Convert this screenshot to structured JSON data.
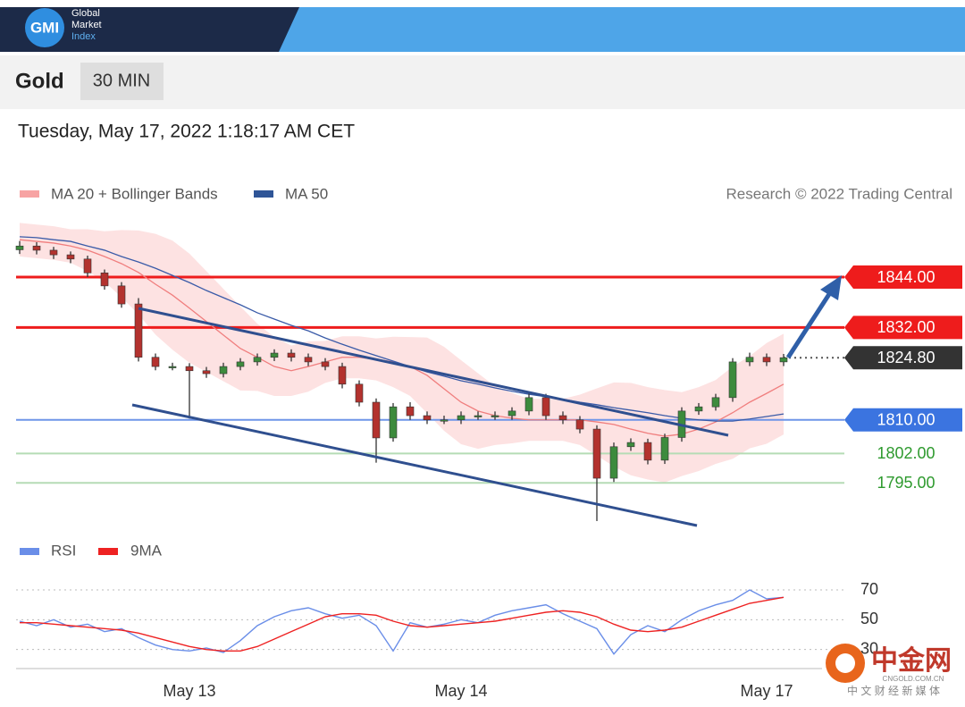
{
  "header": {
    "logo": "GMI",
    "brand": [
      "Global",
      "Market",
      "Index"
    ]
  },
  "instrument": "Gold",
  "interval": "30 MIN",
  "timestamp": "Tuesday, May 17, 2022 1:18:17 AM CET",
  "watermark": {
    "brand": "中金网",
    "site": "CNGOLD.COM.CN",
    "tagline": "中 文 财 经 新 媒 体"
  },
  "chart_data": [
    {
      "type": "candlestick",
      "credit": "Research © 2022 Trading Central",
      "categories": [
        null,
        null,
        null,
        null,
        null,
        null,
        null,
        null,
        null,
        null,
        "May 13",
        null,
        null,
        null,
        null,
        null,
        null,
        null,
        null,
        null,
        null,
        null,
        null,
        null,
        null,
        null,
        "May 14",
        null,
        null,
        null,
        null,
        null,
        null,
        null,
        null,
        null,
        null,
        null,
        null,
        null,
        null,
        null,
        null,
        null,
        "May 17",
        null
      ],
      "open": [
        1850.5,
        1851.4,
        1850.4,
        1849.3,
        1848.3,
        1845.0,
        1841.9,
        1837.6,
        1824.9,
        1822.7,
        1822.7,
        1821.7,
        1821.0,
        1822.7,
        1823.8,
        1824.9,
        1825.9,
        1824.9,
        1823.8,
        1822.7,
        1818.5,
        1814.2,
        1805.7,
        1813.1,
        1811.0,
        1810.0,
        1810.0,
        1811.0,
        1811.0,
        1811.0,
        1812.1,
        1815.3,
        1811.0,
        1810.0,
        1807.8,
        1796.1,
        1803.6,
        1804.6,
        1800.4,
        1805.8,
        1812.1,
        1813.1,
        1815.3,
        1823.8,
        1824.9,
        1823.8
      ],
      "high": [
        1852.6,
        1852.3,
        1851.2,
        1850.1,
        1849.1,
        1845.8,
        1842.8,
        1839.0,
        1825.8,
        1823.6,
        1823.5,
        1822.6,
        1823.6,
        1824.7,
        1825.8,
        1826.8,
        1826.8,
        1825.8,
        1824.7,
        1823.6,
        1819.4,
        1815.1,
        1814.0,
        1814.2,
        1812.0,
        1811.0,
        1812.0,
        1812.0,
        1812.0,
        1813.0,
        1816.6,
        1816.2,
        1812.0,
        1810.9,
        1808.7,
        1804.6,
        1805.6,
        1805.5,
        1806.7,
        1813.0,
        1814.0,
        1816.2,
        1824.7,
        1826.0,
        1825.8,
        1825.7
      ],
      "low": [
        1849.5,
        1849.4,
        1848.3,
        1847.3,
        1844.0,
        1841.0,
        1836.7,
        1823.9,
        1821.8,
        1821.8,
        1810.3,
        1820.0,
        1820.1,
        1821.8,
        1822.9,
        1824.0,
        1823.9,
        1822.8,
        1821.8,
        1817.5,
        1813.2,
        1799.8,
        1804.8,
        1810.0,
        1809.0,
        1809.0,
        1809.0,
        1810.0,
        1810.0,
        1810.0,
        1811.1,
        1810.0,
        1809.0,
        1806.8,
        1785.9,
        1795.2,
        1802.6,
        1799.4,
        1799.5,
        1804.8,
        1811.2,
        1812.2,
        1814.3,
        1822.8,
        1822.8,
        1822.8
      ],
      "close": [
        1851.4,
        1850.4,
        1849.3,
        1848.3,
        1845.0,
        1841.9,
        1837.6,
        1824.9,
        1822.7,
        1822.7,
        1821.7,
        1821.0,
        1822.7,
        1823.8,
        1824.9,
        1825.9,
        1824.9,
        1823.8,
        1822.7,
        1818.5,
        1814.2,
        1805.7,
        1813.1,
        1811.0,
        1810.0,
        1810.0,
        1811.0,
        1811.0,
        1811.0,
        1812.1,
        1815.3,
        1811.0,
        1810.0,
        1807.8,
        1796.1,
        1803.6,
        1804.6,
        1800.4,
        1805.8,
        1812.1,
        1813.1,
        1815.3,
        1823.8,
        1824.9,
        1823.8,
        1824.8
      ],
      "up_color": "#3d8b3d",
      "down_color": "#b3322e",
      "series": [
        {
          "name": "MA 20 + Bollinger Bands",
          "color": "#f07e7e",
          "band_color": "#fde2e2",
          "values": [
            1852.9,
            1852.5,
            1852.1,
            1851.4,
            1850.4,
            1848.9,
            1847.2,
            1845.1,
            1842.3,
            1839.7,
            1836.6,
            1833.4,
            1830.2,
            1827.0,
            1824.9,
            1822.7,
            1821.7,
            1822.7,
            1823.8,
            1824.9,
            1824.9,
            1824.4,
            1823.8,
            1822.7,
            1820.6,
            1817.4,
            1814.2,
            1812.1,
            1811.0,
            1810.4,
            1810.0,
            1810.0,
            1810.0,
            1810.0,
            1809.5,
            1808.9,
            1807.8,
            1806.8,
            1806.1,
            1806.6,
            1807.8,
            1809.5,
            1811.7,
            1814.2,
            1816.3,
            1818.5
          ],
          "upper": [
            1856.9,
            1856.5,
            1856.1,
            1855.4,
            1855.4,
            1854.9,
            1855.2,
            1855.1,
            1854.3,
            1852.7,
            1849.6,
            1845.4,
            1841.2,
            1837.0,
            1832.9,
            1829.7,
            1827.7,
            1828.7,
            1828.8,
            1829.9,
            1829.9,
            1829.4,
            1829.8,
            1829.7,
            1829.6,
            1827.4,
            1824.2,
            1821.1,
            1818.0,
            1816.4,
            1815.0,
            1815.0,
            1815.0,
            1816.0,
            1817.5,
            1818.9,
            1818.8,
            1817.8,
            1817.1,
            1816.6,
            1817.8,
            1819.5,
            1822.7,
            1825.2,
            1828.3,
            1830.5
          ],
          "lower": [
            1848.9,
            1848.5,
            1848.1,
            1847.4,
            1845.4,
            1842.9,
            1839.2,
            1835.1,
            1830.3,
            1826.7,
            1823.6,
            1821.4,
            1819.2,
            1817.0,
            1816.9,
            1815.7,
            1815.7,
            1816.7,
            1818.8,
            1819.9,
            1819.9,
            1819.4,
            1817.8,
            1815.7,
            1811.6,
            1807.4,
            1804.2,
            1803.1,
            1804.0,
            1804.4,
            1805.0,
            1805.0,
            1805.0,
            1804.0,
            1801.5,
            1798.9,
            1796.8,
            1795.8,
            1795.1,
            1796.6,
            1797.8,
            1799.5,
            1800.7,
            1803.2,
            1804.3,
            1806.5
          ]
        },
        {
          "name": "MA 50",
          "color": "#3a5ba8",
          "values": [
            1853.6,
            1853.4,
            1852.9,
            1852.5,
            1851.4,
            1850.4,
            1848.9,
            1847.6,
            1846.1,
            1844.4,
            1842.7,
            1840.8,
            1839.1,
            1837.4,
            1835.5,
            1834.0,
            1832.5,
            1831.2,
            1829.5,
            1828.0,
            1826.6,
            1825.3,
            1824.0,
            1822.7,
            1821.4,
            1820.4,
            1819.3,
            1818.5,
            1817.6,
            1816.8,
            1816.1,
            1815.5,
            1814.9,
            1814.2,
            1813.6,
            1812.9,
            1812.3,
            1811.7,
            1811.0,
            1810.4,
            1810.0,
            1809.7,
            1809.7,
            1810.2,
            1810.8,
            1811.4
          ]
        }
      ],
      "levels": [
        {
          "value": 1844,
          "label": "1844.00",
          "color": "#ee1c1c",
          "line_color": "#ee1c1c",
          "box": true,
          "line": "solid"
        },
        {
          "value": 1832,
          "label": "1832.00",
          "color": "#ee1c1c",
          "line_color": "#ee1c1c",
          "box": true,
          "line": "solid"
        },
        {
          "value": 1824.8,
          "label": "1824.80",
          "color": "#333333",
          "line_color": "#555555",
          "box": true,
          "line": "dotted"
        },
        {
          "value": 1810,
          "label": "1810.00",
          "color": "#3b74e0",
          "line_color": "#6f95e8",
          "box": true,
          "line": "solid"
        },
        {
          "value": 1802,
          "label": "1802.00",
          "color": "#2e9a2e",
          "line_color": "#b5dcb5",
          "box": false,
          "line": "solid"
        },
        {
          "value": 1795,
          "label": "1795.00",
          "color": "#2e9a2e",
          "line_color": "#b5dcb5",
          "box": false,
          "line": "solid"
        }
      ],
      "ylim": [
        1784.4,
        1858.9
      ]
    },
    {
      "type": "line",
      "series": [
        {
          "name": "RSI",
          "color": "#6a8ee8",
          "values": [
            49,
            46,
            50,
            45,
            47,
            42,
            44,
            38,
            33,
            30,
            29,
            31,
            28,
            36,
            46,
            52,
            56,
            58,
            54,
            51,
            53,
            46,
            29,
            48,
            45,
            47,
            50,
            48,
            53,
            56,
            58,
            60,
            54,
            49,
            44,
            27,
            40,
            46,
            42,
            50,
            56,
            60,
            63,
            70,
            64,
            65
          ]
        },
        {
          "name": "9MA",
          "color": "#ee2222",
          "values": [
            48,
            48,
            47,
            46,
            45,
            44,
            43,
            41,
            38,
            35,
            32,
            30,
            29,
            29,
            32,
            37,
            42,
            47,
            52,
            54,
            54,
            53,
            49,
            46,
            45,
            46,
            47,
            48,
            49,
            51,
            53,
            55,
            56,
            55,
            52,
            47,
            43,
            42,
            43,
            45,
            49,
            53,
            57,
            61,
            63,
            65
          ]
        }
      ],
      "ylim": [
        19,
        82
      ],
      "yticks": [
        70,
        50,
        30
      ],
      "grid": true
    }
  ]
}
